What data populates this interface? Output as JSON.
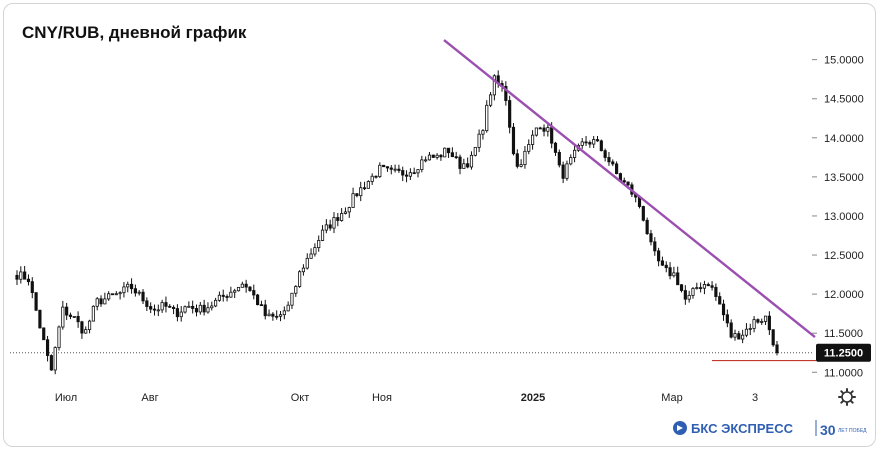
{
  "chart_data": {
    "type": "candlestick",
    "title": "CNY/RUB, дневной график",
    "ylim": [
      10.85,
      15.2
    ],
    "y_ticks": [
      {
        "value": 15.0,
        "label": "15.0000"
      },
      {
        "value": 14.5,
        "label": "14.5000"
      },
      {
        "value": 14.0,
        "label": "14.0000"
      },
      {
        "value": 13.5,
        "label": "13.5000"
      },
      {
        "value": 13.0,
        "label": "13.0000"
      },
      {
        "value": 12.5,
        "label": "12.5000"
      },
      {
        "value": 12.0,
        "label": "12.0000"
      },
      {
        "value": 11.5,
        "label": "11.5000"
      },
      {
        "value": 11.0,
        "label": "11.0000"
      }
    ],
    "x_ticks": [
      {
        "label": "Июл",
        "bold": false
      },
      {
        "label": "Авг",
        "bold": false
      },
      {
        "label": "Окт",
        "bold": false
      },
      {
        "label": "Ноя",
        "bold": false
      },
      {
        "label": "2025",
        "bold": true
      },
      {
        "label": "Мар",
        "bold": false
      },
      {
        "label": "3",
        "bold": false
      }
    ],
    "last_price": {
      "value": 11.25,
      "label": "11.2500"
    },
    "support_level": 11.15,
    "trendline": {
      "from": 15.25,
      "to": 11.45
    },
    "colors": {
      "up": "#ffffff",
      "down": "#111111",
      "trend": "#9b4fb0",
      "support": "#c0392b",
      "badge": "#111111"
    },
    "anchors": [
      12.25,
      12.2,
      11.6,
      11.0,
      11.8,
      11.7,
      11.5,
      11.9,
      11.95,
      12.0,
      12.1,
      11.95,
      11.8,
      11.85,
      11.75,
      11.85,
      11.8,
      11.85,
      11.95,
      12.05,
      12.15,
      11.95,
      11.7,
      11.7,
      11.85,
      12.3,
      12.55,
      12.8,
      12.95,
      13.1,
      13.3,
      13.45,
      13.6,
      13.55,
      13.55,
      13.6,
      13.75,
      13.75,
      13.85,
      13.65,
      13.7,
      14.1,
      14.75,
      14.6,
      13.6,
      13.85,
      14.2,
      14.05,
      13.5,
      13.75,
      13.95,
      13.95,
      13.75,
      13.5,
      13.35,
      13.1,
      12.55,
      12.3,
      12.25,
      11.9,
      12.1,
      12.15,
      11.85,
      11.45,
      11.5,
      11.65,
      11.7,
      11.25
    ]
  },
  "watermark": {
    "brand": "БКС ЭКСПРЕСС",
    "years": "30",
    "years_sub": "ЛЕТ ПОБЕД"
  },
  "icons": {
    "settings": "gear-icon"
  }
}
